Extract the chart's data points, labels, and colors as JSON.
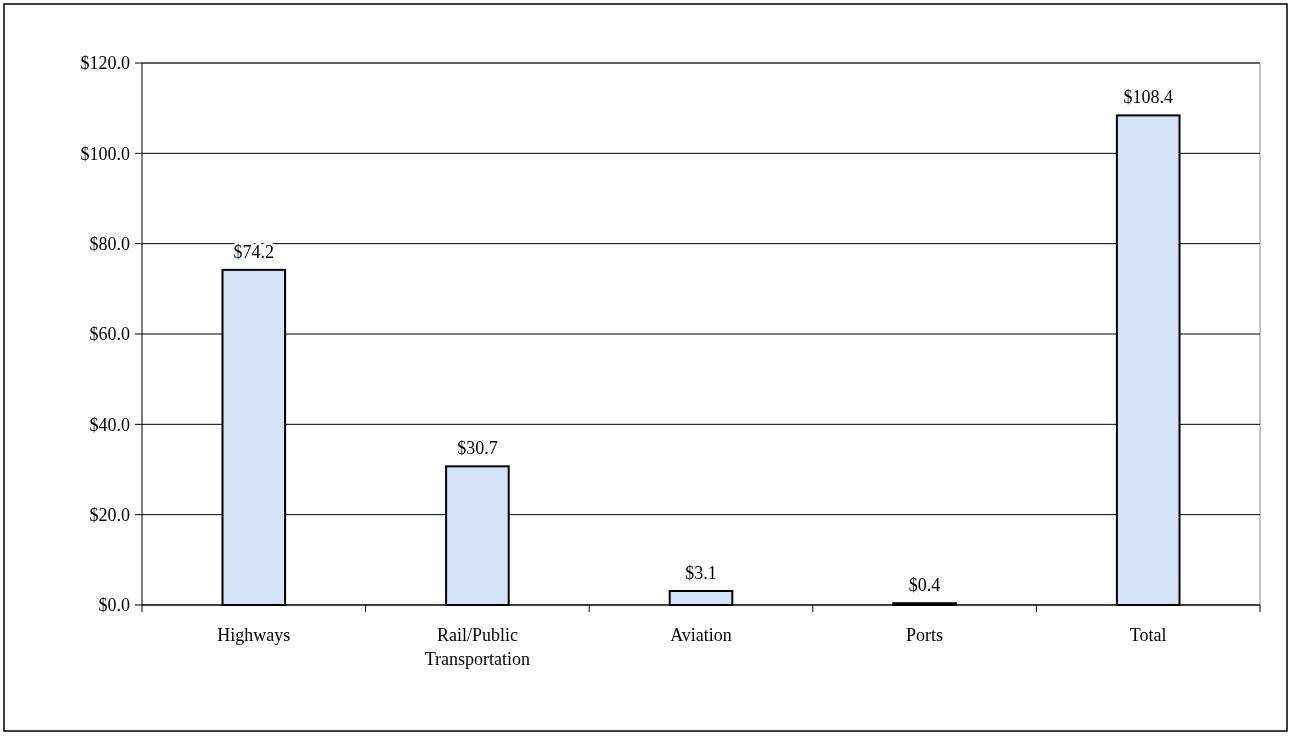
{
  "chart_data": {
    "type": "bar",
    "categories": [
      "Highways",
      "Rail/Public Transportation",
      "Aviation",
      "Ports",
      "Total"
    ],
    "values": [
      74.2,
      30.7,
      3.1,
      0.4,
      108.4
    ],
    "value_labels": [
      "$74.2",
      "$30.7",
      "$3.1",
      "$0.4",
      "$108.4"
    ],
    "color": "#d4e3f7",
    "ylim": [
      0,
      120
    ],
    "yticks": [
      {
        "value": 0,
        "label": "$0.0"
      },
      {
        "value": 20,
        "label": "$20.0"
      },
      {
        "value": 40,
        "label": "$40.0"
      },
      {
        "value": 60,
        "label": "$60.0"
      },
      {
        "value": 80,
        "label": "$80.0"
      },
      {
        "value": 100,
        "label": "$100.0"
      },
      {
        "value": 120,
        "label": "$120.0"
      }
    ],
    "grid": "y"
  }
}
